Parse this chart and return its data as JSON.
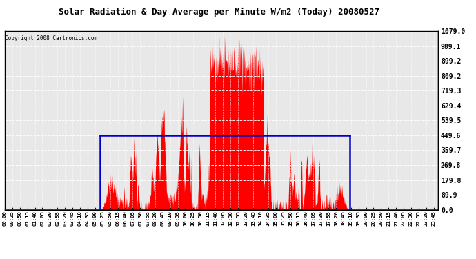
{
  "title": "Solar Radiation & Day Average per Minute W/m2 (Today) 20080527",
  "copyright": "Copyright 2008 Cartronics.com",
  "bg_color": "#ffffff",
  "plot_bg_color": "#e8e8e8",
  "bar_color": "#ff0000",
  "line_color": "#0000cc",
  "grid_color": "#ffffff",
  "axis_color": "#000000",
  "ymin": 0.0,
  "ymax": 1079.0,
  "ytick_values": [
    0.0,
    89.9,
    179.8,
    269.8,
    359.7,
    449.6,
    539.5,
    629.4,
    719.3,
    809.2,
    899.2,
    989.1,
    1079.0
  ],
  "ytick_labels": [
    "0.0",
    "89.9",
    "179.8",
    "269.8",
    "359.7",
    "449.6",
    "539.5",
    "629.4",
    "719.3",
    "809.2",
    "899.2",
    "989.1",
    "1079.0"
  ],
  "day_avg_value": 449.6,
  "sunrise_minute": 316,
  "sunset_minute": 1146,
  "num_minutes": 1440,
  "tick_interval": 25
}
